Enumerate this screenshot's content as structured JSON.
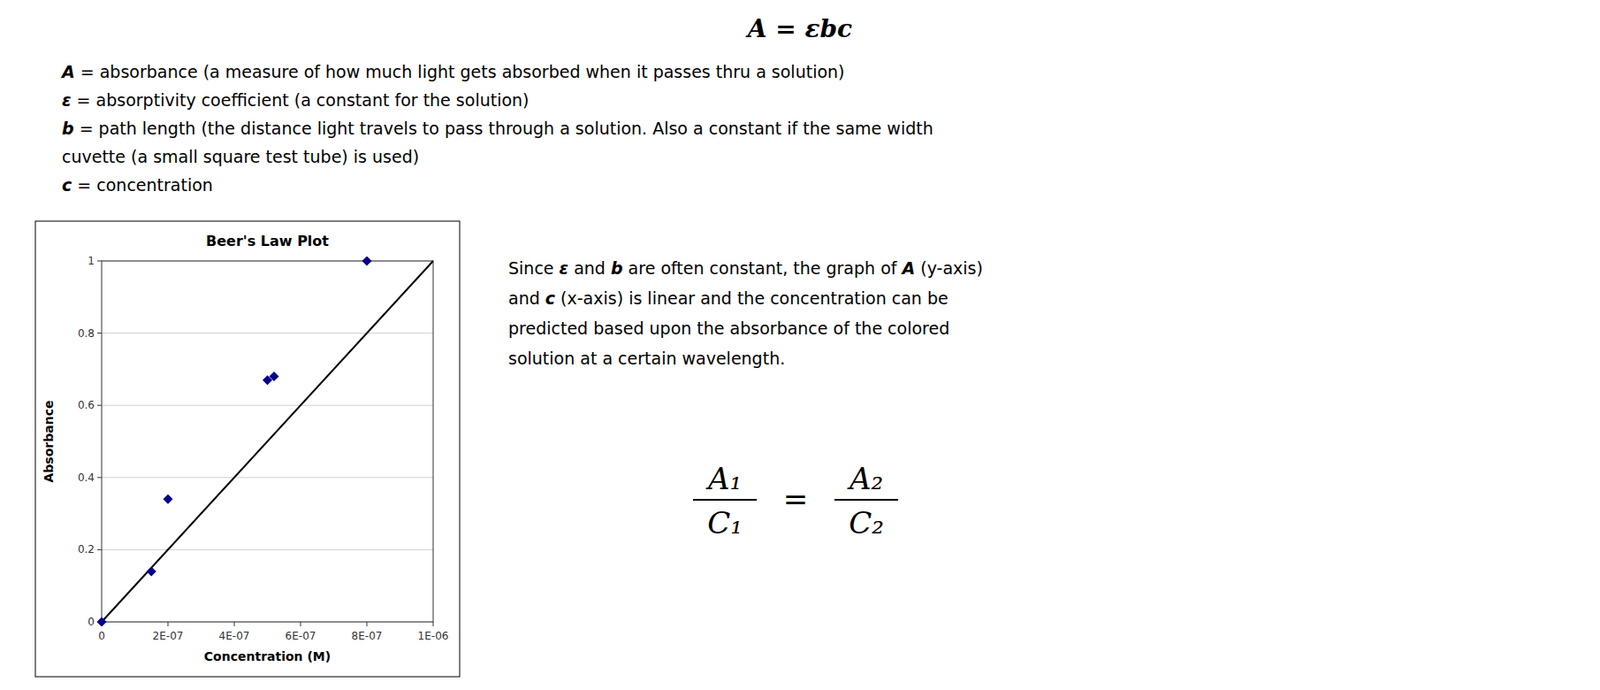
{
  "chart_data": {
    "type": "scatter",
    "title": "Beer's Law Plot",
    "x_label": "Concentration (M)",
    "y_label": "Absorbance",
    "series": [
      {
        "type": "line",
        "color": "#000000",
        "line_style": "solid",
        "x": [
          0,
          1e-06
        ],
        "values": [
          0,
          1.0
        ]
      },
      {
        "type": "scatter",
        "color": "#00008B",
        "marker": "diamond",
        "x": [
          0,
          1.5e-07,
          2e-07,
          5e-07,
          5.2e-07,
          8e-07
        ],
        "values": [
          0,
          0.14,
          0.34,
          0.67,
          0.68,
          1.0
        ]
      }
    ],
    "xlim": [
      0,
      1e-06
    ],
    "ylim": [
      0,
      1.0
    ],
    "xticks": [
      0,
      {
        "value": 2e-07,
        "label": "2E-07"
      },
      {
        "value": 4e-07,
        "label": "4E-07"
      },
      {
        "value": 6e-07,
        "label": "6E-07"
      },
      {
        "value": 8e-07,
        "label": "8E-07"
      },
      {
        "value": 1e-06,
        "label": "1E-06"
      }
    ],
    "yticks": [
      0,
      0.2,
      0.4,
      0.6,
      0.8,
      1
    ],
    "grid": true,
    "formula": "A = εbc",
    "definitions": [
      "A = absorbance (a measure of how much light gets absorbed when it passes thru a solution)",
      "ε = absorptivity coefficient (a constant for the solution)",
      "b = path length (the distance light travels to pass through a solution. Also a constant if the same width",
      "cuvette (a small square test tube) is used)",
      "c = concentration"
    ],
    "notes": [
      "Since ε and b are often constant, the graph of A (y-axis)",
      "and c (x-axis) is linear and the concentration can be",
      "predicted based upon the absorbance of the colored",
      "solution at a certain wavelength."
    ],
    "equation": {
      "left": [
        "A₁",
        "C₁"
      ],
      "sign": "=",
      "right": [
        "A₂",
        "C₂"
      ]
    }
  }
}
